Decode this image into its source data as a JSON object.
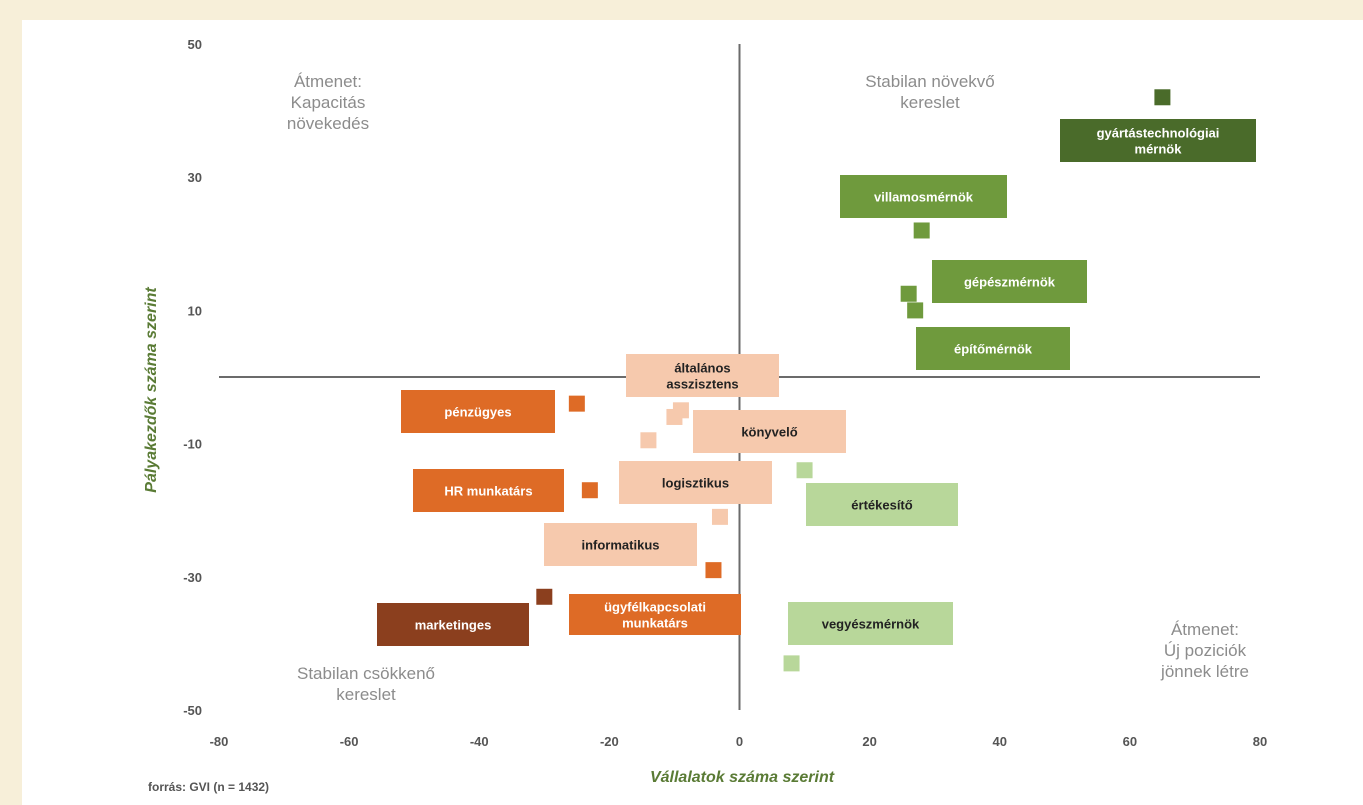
{
  "chart_data": {
    "type": "scatter",
    "xlabel": "Vállalatok száma szerint",
    "ylabel": "Pályakezdők száma szerint",
    "xlim": [
      -80,
      80
    ],
    "ylim": [
      -50,
      50
    ],
    "x_ticks": [
      "-80",
      "-60",
      "-40",
      "-20",
      "0",
      "20",
      "40",
      "60",
      "80"
    ],
    "y_ticks": [
      "50",
      "30",
      "10",
      "-10",
      "-30",
      "-50"
    ],
    "grid": false,
    "quadrants": [
      {
        "id": "tl",
        "lines": [
          "Átmenet:",
          "Kapacitás",
          "növekedés"
        ]
      },
      {
        "id": "tr",
        "lines": [
          "Stabilan növekvő",
          "kereslet"
        ]
      },
      {
        "id": "bl",
        "lines": [
          "Stabilan csökkenő",
          "kereslet"
        ]
      },
      {
        "id": "br",
        "lines": [
          "Átmenet:",
          "Új poziciók",
          "jönnek létre"
        ]
      }
    ],
    "points": [
      {
        "label": [
          "gyártástechnológiai",
          "mérnök"
        ],
        "x": 65,
        "y": 42,
        "color": "#4a6b2a",
        "text_color": "#ffffff"
      },
      {
        "label": [
          "villamosmérnök"
        ],
        "x": 28,
        "y": 22,
        "color": "#6f9a3d",
        "text_color": "#ffffff"
      },
      {
        "label": [
          "gépészmérnök"
        ],
        "x": 26,
        "y": 12.5,
        "color": "#6f9a3d",
        "text_color": "#ffffff"
      },
      {
        "label": [
          "építőmérnök"
        ],
        "x": 27,
        "y": 10,
        "color": "#6f9a3d",
        "text_color": "#ffffff"
      },
      {
        "label": [
          "általános",
          "asszisztens"
        ],
        "x": -9,
        "y": -5,
        "color": "#f6c9ad",
        "text_color": "#222222"
      },
      {
        "label": [
          "könyvelő"
        ],
        "x": -10,
        "y": -6,
        "color": "#f6c9ad",
        "text_color": "#222222"
      },
      {
        "label": [
          "logisztikus"
        ],
        "x": -14,
        "y": -9.5,
        "color": "#f6c9ad",
        "text_color": "#222222"
      },
      {
        "label": [
          "informatikus"
        ],
        "x": -3,
        "y": -21,
        "color": "#f6c9ad",
        "text_color": "#222222"
      },
      {
        "label": [
          "pénzügyes"
        ],
        "x": -25,
        "y": -4,
        "color": "#de6b26",
        "text_color": "#ffffff"
      },
      {
        "label": [
          "HR munkatárs"
        ],
        "x": -23,
        "y": -17,
        "color": "#de6b26",
        "text_color": "#ffffff"
      },
      {
        "label": [
          "ügyfélkapcsolati",
          "munkatárs"
        ],
        "x": -4,
        "y": -29,
        "color": "#de6b26",
        "text_color": "#ffffff"
      },
      {
        "label": [
          "marketinges"
        ],
        "x": -30,
        "y": -33,
        "color": "#8b3f1e",
        "text_color": "#ffffff"
      },
      {
        "label": [
          "értékesítő"
        ],
        "x": 10,
        "y": -14,
        "color": "#b8d79a",
        "text_color": "#222222"
      },
      {
        "label": [
          "vegyészmérnök"
        ],
        "x": 8,
        "y": -43,
        "color": "#b8d79a",
        "text_color": "#222222"
      }
    ],
    "source": "forrás: GVI (n = 1432)"
  }
}
